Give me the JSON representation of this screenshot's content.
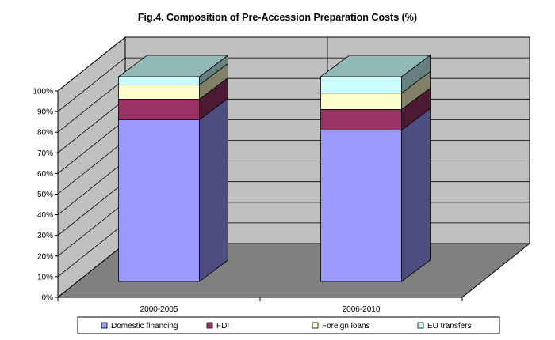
{
  "chart_data": {
    "type": "bar",
    "stacked": true,
    "style": "3d-stacked-column-100pct",
    "title": "Fig.4. Composition of Pre-Accession Preparation Costs (%)",
    "categories": [
      "2000-2005",
      "2006-2010"
    ],
    "series": [
      {
        "name": "Domestic financing",
        "values": [
          79,
          74
        ],
        "color": "#9999FF"
      },
      {
        "name": "FDI",
        "values": [
          10,
          10
        ],
        "color": "#993366"
      },
      {
        "name": "Foreign loans",
        "values": [
          7,
          8
        ],
        "color": "#FFFFCC"
      },
      {
        "name": "EU transfers",
        "values": [
          4,
          8
        ],
        "color": "#CCFFFF"
      }
    ],
    "y_ticks": [
      "0%",
      "10%",
      "20%",
      "30%",
      "40%",
      "50%",
      "60%",
      "70%",
      "80%",
      "90%",
      "100%"
    ],
    "ylim": [
      0,
      100
    ],
    "grid": true,
    "wall_color": "#C0C0C0",
    "floor_color": "#808080",
    "legend_position": "bottom"
  }
}
